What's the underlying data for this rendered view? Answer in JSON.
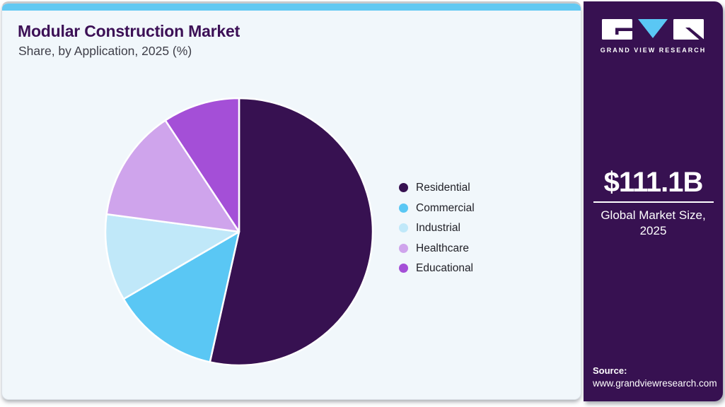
{
  "header": {
    "title": "Modular Construction Market",
    "subtitle": "Share, by Application, 2025 (%)"
  },
  "chart_data": {
    "type": "pie",
    "title": "Modular Construction Market Share, by Application, 2025 (%)",
    "unit": "%",
    "start_angle_deg": 0,
    "direction": "clockwise",
    "legend_position": "right",
    "slices": [
      {
        "label": "Residential",
        "value": 53.5,
        "color": "#371151"
      },
      {
        "label": "Commercial",
        "value": 13.1,
        "color": "#5ac7f4"
      },
      {
        "label": "Industrial",
        "value": 10.5,
        "color": "#c0e8f9"
      },
      {
        "label": "Healthcare",
        "value": 13.6,
        "color": "#cfa4ec"
      },
      {
        "label": "Educational",
        "value": 9.3,
        "color": "#a44fd7"
      }
    ]
  },
  "sidebar": {
    "logo": {
      "brand": "GRAND VIEW RESEARCH",
      "triangle_color": "#5ac7f4",
      "shape_color": "#ffffff"
    },
    "market_size": {
      "value": "$111.1B",
      "caption_line1": "Global Market Size,",
      "caption_line2": "2025"
    },
    "source": {
      "label": "Source:",
      "url": "www.grandviewresearch.com"
    }
  },
  "colors": {
    "accent_bar": "#63c9f2",
    "card_background": "#f1f7fb",
    "sidebar_background": "#371151",
    "title_text": "#3c1056"
  }
}
